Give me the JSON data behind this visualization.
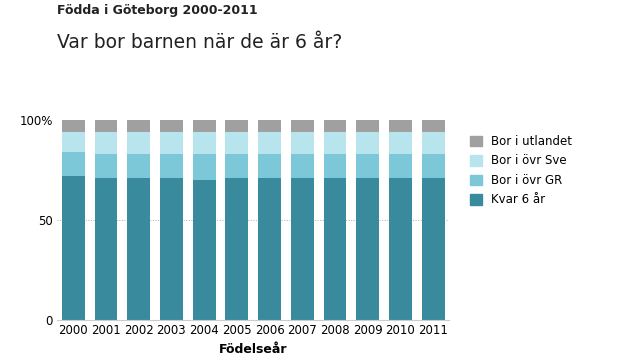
{
  "years": [
    2000,
    2001,
    2002,
    2003,
    2004,
    2005,
    2006,
    2007,
    2008,
    2009,
    2010,
    2011
  ],
  "kvar_6ar": [
    72,
    71,
    71,
    71,
    70,
    71,
    71,
    71,
    71,
    71,
    71,
    71
  ],
  "bor_ovr_gr": [
    12,
    12,
    12,
    12,
    13,
    12,
    12,
    12,
    12,
    12,
    12,
    12
  ],
  "bor_ovr_sve": [
    10,
    11,
    11,
    11,
    11,
    11,
    11,
    11,
    11,
    11,
    11,
    11
  ],
  "bor_utlandet": [
    6,
    6,
    6,
    6,
    6,
    6,
    6,
    6,
    6,
    6,
    6,
    6
  ],
  "color_kvar": "#3a8a9e",
  "color_ovr_gr": "#7dc8d8",
  "color_ovr_sve": "#b8e4ee",
  "color_utlandet": "#a0a0a0",
  "title_bold": "Födda i Göteborg 2000-2011",
  "title_main": "Var bor barnen när de är 6 år?",
  "xlabel": "Födelseår",
  "legend_labels": [
    "Bor i utlandet",
    "Bor i övr Sve",
    "Bor i övr GR",
    "Kvar 6 år"
  ],
  "yticks": [
    0,
    50,
    100
  ],
  "ytick_labels": [
    "0",
    "50",
    "100%"
  ],
  "ylim": [
    0,
    100
  ],
  "bar_width": 0.7
}
